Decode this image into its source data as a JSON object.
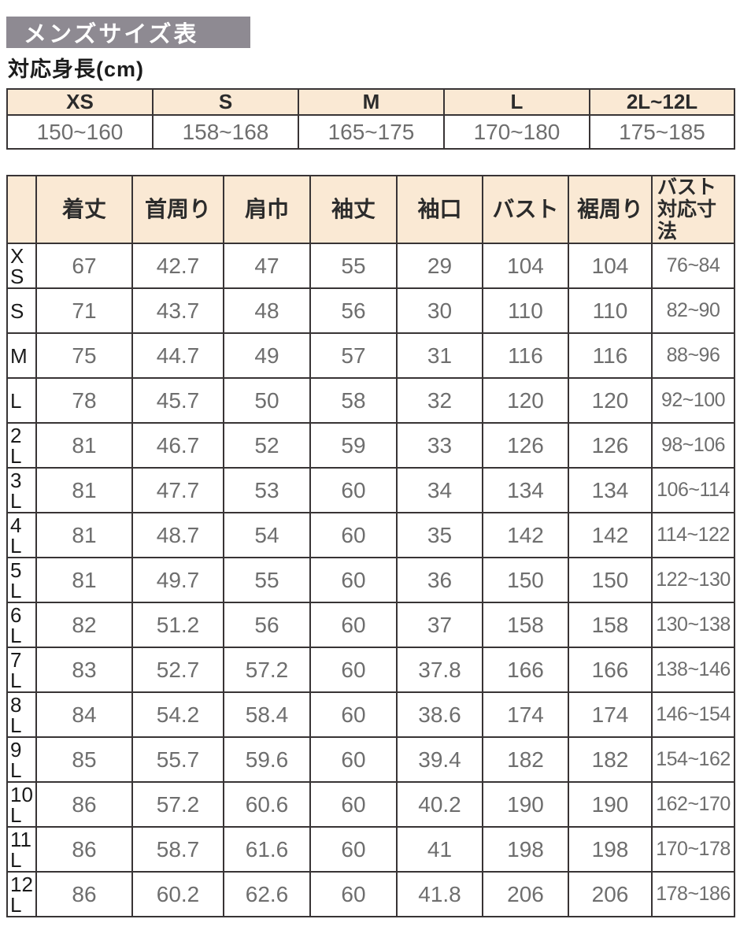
{
  "page": {
    "title": "メンズサイズ表",
    "subtitle": "対応身長(cm)"
  },
  "colors": {
    "banner_bg": "#8e8a92",
    "banner_text": "#ffffff",
    "table_header_bg": "#fae9d4",
    "border": "#383435",
    "value_text": "#6e6e6e",
    "label_text": "#1c1c1c"
  },
  "height_table": {
    "columns": [
      "XS",
      "S",
      "M",
      "L",
      "2L~12L"
    ],
    "values": [
      "150~160",
      "158~168",
      "165~175",
      "170~180",
      "175~185"
    ]
  },
  "size_table": {
    "corner_label": "",
    "columns": [
      "着丈",
      "首周り",
      "肩巾",
      "袖丈",
      "袖口",
      "バスト",
      "裾周り"
    ],
    "range_column": [
      "バスト",
      "対応寸法"
    ],
    "rows": [
      {
        "size": "XS",
        "size_lines": [
          "X",
          "S"
        ],
        "values": [
          "67",
          "42.7",
          "47",
          "55",
          "29",
          "104",
          "104",
          "76~84"
        ]
      },
      {
        "size": "S",
        "size_lines": [
          "S"
        ],
        "values": [
          "71",
          "43.7",
          "48",
          "56",
          "30",
          "110",
          "110",
          "82~90"
        ]
      },
      {
        "size": "M",
        "size_lines": [
          "M"
        ],
        "values": [
          "75",
          "44.7",
          "49",
          "57",
          "31",
          "116",
          "116",
          "88~96"
        ]
      },
      {
        "size": "L",
        "size_lines": [
          "L"
        ],
        "values": [
          "78",
          "45.7",
          "50",
          "58",
          "32",
          "120",
          "120",
          "92~100"
        ]
      },
      {
        "size": "2L",
        "size_lines": [
          "2",
          "L"
        ],
        "values": [
          "81",
          "46.7",
          "52",
          "59",
          "33",
          "126",
          "126",
          "98~106"
        ]
      },
      {
        "size": "3L",
        "size_lines": [
          "3",
          "L"
        ],
        "values": [
          "81",
          "47.7",
          "53",
          "60",
          "34",
          "134",
          "134",
          "106~114"
        ]
      },
      {
        "size": "4L",
        "size_lines": [
          "4",
          "L"
        ],
        "values": [
          "81",
          "48.7",
          "54",
          "60",
          "35",
          "142",
          "142",
          "114~122"
        ]
      },
      {
        "size": "5L",
        "size_lines": [
          "5",
          "L"
        ],
        "values": [
          "81",
          "49.7",
          "55",
          "60",
          "36",
          "150",
          "150",
          "122~130"
        ]
      },
      {
        "size": "6L",
        "size_lines": [
          "6",
          "L"
        ],
        "values": [
          "82",
          "51.2",
          "56",
          "60",
          "37",
          "158",
          "158",
          "130~138"
        ]
      },
      {
        "size": "7L",
        "size_lines": [
          "7",
          "L"
        ],
        "values": [
          "83",
          "52.7",
          "57.2",
          "60",
          "37.8",
          "166",
          "166",
          "138~146"
        ]
      },
      {
        "size": "8L",
        "size_lines": [
          "8",
          "L"
        ],
        "values": [
          "84",
          "54.2",
          "58.4",
          "60",
          "38.6",
          "174",
          "174",
          "146~154"
        ]
      },
      {
        "size": "9L",
        "size_lines": [
          "9",
          "L"
        ],
        "values": [
          "85",
          "55.7",
          "59.6",
          "60",
          "39.4",
          "182",
          "182",
          "154~162"
        ]
      },
      {
        "size": "10L",
        "size_lines": [
          "10",
          "L"
        ],
        "values": [
          "86",
          "57.2",
          "60.6",
          "60",
          "40.2",
          "190",
          "190",
          "162~170"
        ]
      },
      {
        "size": "11L",
        "size_lines": [
          "11",
          "L"
        ],
        "values": [
          "86",
          "58.7",
          "61.6",
          "60",
          "41",
          "198",
          "198",
          "170~178"
        ]
      },
      {
        "size": "12L",
        "size_lines": [
          "12",
          "L"
        ],
        "values": [
          "86",
          "60.2",
          "62.6",
          "60",
          "41.8",
          "206",
          "206",
          "178~186"
        ]
      }
    ]
  }
}
